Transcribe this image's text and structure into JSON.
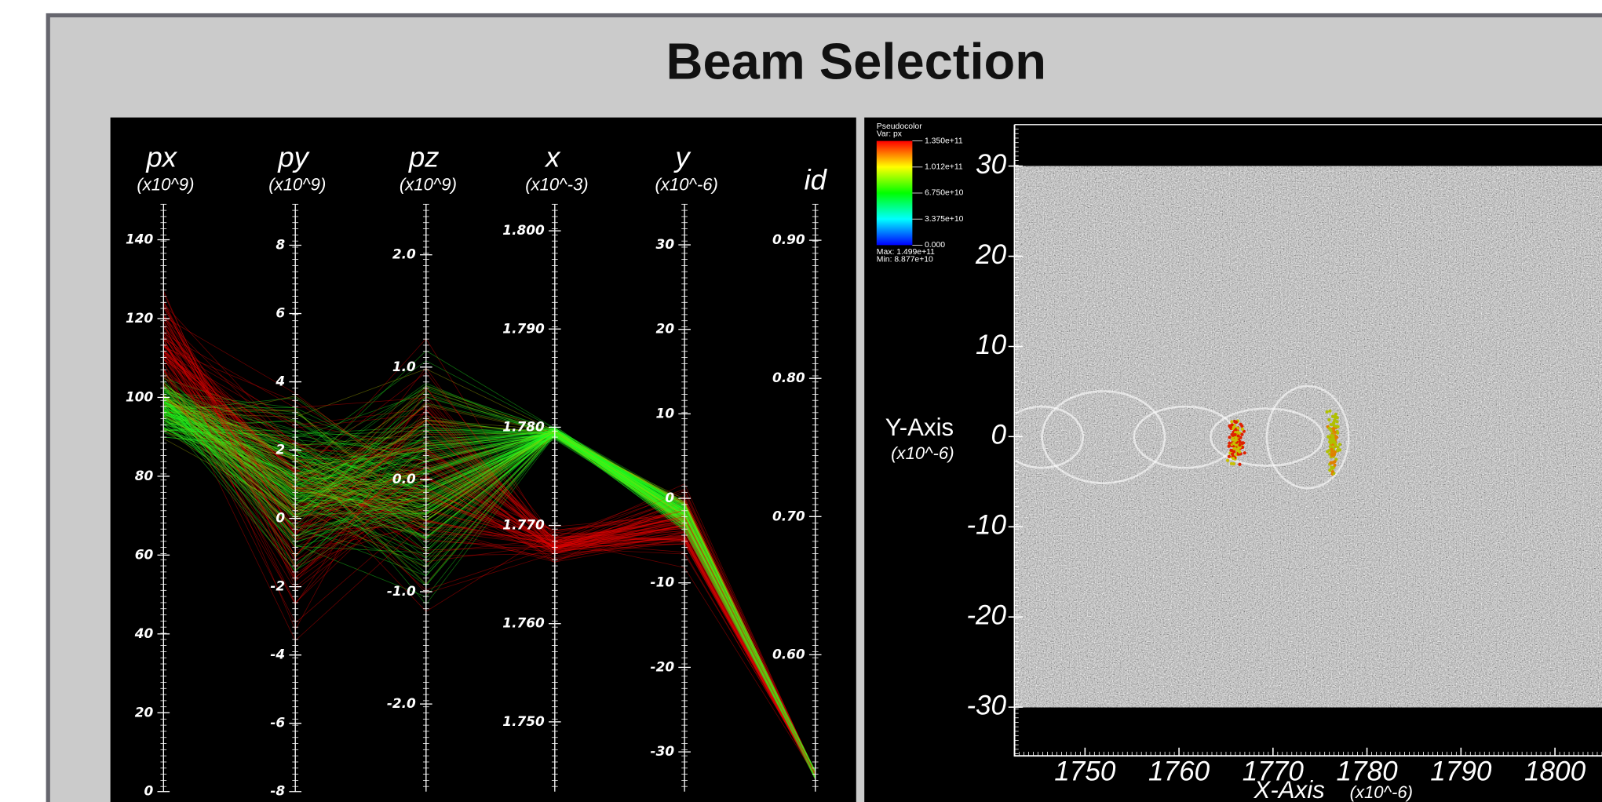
{
  "title": "Beam Selection",
  "chart_data": [
    {
      "type": "parallel_coordinates",
      "axes": [
        {
          "name": "px",
          "unit": "(x10^9)",
          "ylim": [
            0,
            149
          ],
          "yticks": [
            0,
            20,
            40,
            60,
            80,
            100,
            120,
            140
          ]
        },
        {
          "name": "py",
          "unit": "(x10^9)",
          "ylim": [
            -8,
            9.2
          ],
          "yticks": [
            -8,
            -6,
            -4,
            -2,
            0,
            2,
            4,
            6,
            8
          ]
        },
        {
          "name": "pz",
          "unit": "(x10^9)",
          "ylim": [
            -2.78,
            2.45
          ],
          "yticks": [
            {
              "value": -2,
              "label": "-2.0"
            },
            {
              "value": -1,
              "label": "-1.0"
            },
            {
              "value": 0,
              "label": "0.0"
            },
            {
              "value": 1,
              "label": "1.0"
            },
            {
              "value": 2,
              "label": "2.0"
            }
          ]
        },
        {
          "name": "x",
          "unit": "(x10^-3)",
          "ylim": [
            1.7429,
            1.8027
          ],
          "yticks": [
            {
              "value": 1.75,
              "label": "1.750"
            },
            {
              "value": 1.76,
              "label": "1.760"
            },
            {
              "value": 1.77,
              "label": "1.770"
            },
            {
              "value": 1.78,
              "label": "1.780"
            },
            {
              "value": 1.79,
              "label": "1.790"
            },
            {
              "value": 1.8,
              "label": "1.800"
            }
          ]
        },
        {
          "name": "y",
          "unit": "(x10^-6)",
          "ylim": [
            -34.7,
            34.8
          ],
          "yticks": [
            -30,
            -20,
            -10,
            0,
            10,
            20,
            30
          ]
        },
        {
          "name": "id",
          "ylim": [
            0.501,
            0.926
          ],
          "yticks": [
            {
              "value": 0.6,
              "label": "0.60"
            },
            {
              "value": 0.7,
              "label": "0.70"
            },
            {
              "value": 0.8,
              "label": "0.80"
            },
            {
              "value": 0.9,
              "label": "0.90"
            }
          ]
        }
      ]
    },
    {
      "type": "pseudocolor",
      "legend": {
        "title": "Pseudocolor",
        "variable": "Var: px",
        "ticks": [
          {
            "value": 135000000000,
            "label": "1.350e+11"
          },
          {
            "value": 101200000000,
            "label": "1.012e+11"
          },
          {
            "value": 67500000000,
            "label": "6.750e+10"
          },
          {
            "value": 33750000000,
            "label": "3.375e+10"
          },
          {
            "value": 0,
            "label": "0.000"
          }
        ],
        "max": "Max: 1.499e+11",
        "min": "Min: 8.877e+10"
      },
      "x_label": "X-Axis",
      "x_unit": "(x10^-6)",
      "y_label": "Y-Axis",
      "y_unit": "(x10^-6)",
      "xlim": [
        1742.5,
        1810
      ],
      "xticks": [
        1750,
        1760,
        1770,
        1780,
        1790,
        1800
      ],
      "ylim": [
        -35.4,
        34.6
      ],
      "yticks": [
        -30,
        -20,
        -10,
        0,
        10,
        20,
        30
      ]
    }
  ]
}
